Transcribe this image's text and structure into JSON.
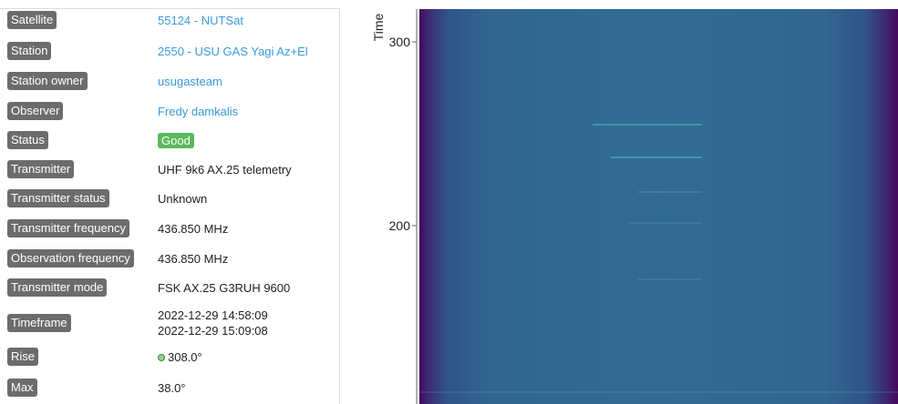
{
  "details": [
    {
      "label": "Satellite",
      "value": "55124 - NUTSat"
    },
    {
      "label": "Station",
      "value": "2550 - USU GAS Yagi Az+El"
    },
    {
      "label": "Station owner",
      "value": "usugasteam"
    },
    {
      "label": "Observer",
      "value": "Fredy damkalis"
    },
    {
      "label": "Status",
      "value": "Good"
    },
    {
      "label": "Transmitter",
      "value": "UHF 9k6 AX.25 telemetry"
    },
    {
      "label": "Transmitter status",
      "value": "Unknown"
    },
    {
      "label": "Transmitter frequency",
      "value": "436.850 MHz"
    },
    {
      "label": "Observation frequency",
      "value": "436.850 MHz"
    },
    {
      "label": "Transmitter mode",
      "value": "FSK AX.25 G3RUH 9600"
    },
    {
      "label": "Timeframe",
      "value": [
        "2022-12-29 14:58:09",
        "2022-12-29 15:09:08"
      ]
    },
    {
      "label": "Rise",
      "value": "308.0°"
    },
    {
      "label": "Max",
      "value": "38.0°"
    }
  ],
  "waterfall": {
    "axis_label": "Time",
    "yticks": [
      300,
      200
    ]
  }
}
